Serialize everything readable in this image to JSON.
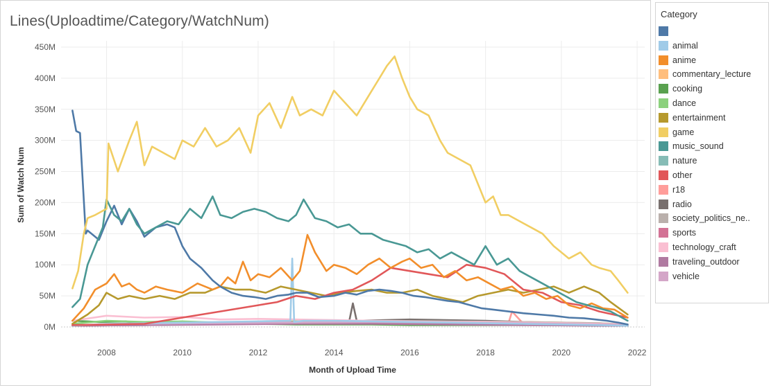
{
  "chart_data": {
    "type": "line",
    "title": "Lines(Uploadtime/Category/WatchNum)",
    "xlabel": "Month of Upload Time",
    "ylabel": "Sum of Watch Num",
    "xlim": [
      2006.8,
      2022.2
    ],
    "ylim": [
      0,
      460
    ],
    "x_ticks": [
      "2008",
      "2010",
      "2012",
      "2014",
      "2016",
      "2018",
      "2020",
      "2022"
    ],
    "y_ticks": [
      "0M",
      "50M",
      "100M",
      "150M",
      "200M",
      "250M",
      "300M",
      "350M",
      "400M",
      "450M"
    ],
    "legend_title": "Category",
    "legend_position": "right",
    "series": [
      {
        "name": "",
        "color": "#4e79a7",
        "x": [
          2007.1,
          2007.2,
          2007.3,
          2007.45,
          2007.5,
          2007.6,
          2007.8,
          2008.0,
          2008.2,
          2008.4,
          2008.6,
          2008.8,
          2009.0,
          2009.3,
          2009.6,
          2009.8,
          2010.0,
          2010.2,
          2010.5,
          2010.8,
          2011.0,
          2011.3,
          2011.6,
          2011.9,
          2012.2,
          2012.5,
          2012.8,
          2013.0,
          2013.3,
          2013.6,
          2014.0,
          2014.3,
          2014.6,
          2014.9,
          2015.2,
          2015.5,
          2015.8,
          2016.1,
          2016.4,
          2016.7,
          2017.0,
          2017.3,
          2017.6,
          2017.9,
          2018.2,
          2018.6,
          2019.0,
          2019.4,
          2019.8,
          2020.2,
          2020.6,
          2020.9,
          2021.2,
          2021.5,
          2021.75
        ],
        "y": [
          348,
          315,
          312,
          150,
          155,
          150,
          140,
          170,
          195,
          165,
          190,
          170,
          145,
          160,
          165,
          160,
          130,
          110,
          95,
          75,
          65,
          55,
          50,
          48,
          45,
          50,
          52,
          55,
          55,
          48,
          50,
          55,
          52,
          58,
          60,
          58,
          55,
          50,
          48,
          45,
          42,
          40,
          35,
          30,
          28,
          25,
          22,
          20,
          18,
          15,
          14,
          12,
          10,
          7,
          4
        ]
      },
      {
        "name": "animal",
        "color": "#a0cbe8",
        "x": [
          2007.1,
          2008,
          2009,
          2010,
          2011,
          2012,
          2012.85,
          2012.9,
          2012.95,
          2013.2,
          2014,
          2015,
          2016,
          2017,
          2018,
          2019,
          2020,
          2021,
          2021.75
        ],
        "y": [
          2,
          5,
          6,
          7,
          8,
          9,
          10,
          110,
          8,
          10,
          10,
          9,
          8,
          7,
          6,
          5,
          4,
          3,
          2
        ]
      },
      {
        "name": "anime",
        "color": "#f28e2b",
        "x": [
          2007.1,
          2007.4,
          2007.7,
          2008.0,
          2008.2,
          2008.4,
          2008.6,
          2008.8,
          2009.0,
          2009.3,
          2009.6,
          2010.0,
          2010.4,
          2010.8,
          2011.0,
          2011.2,
          2011.4,
          2011.6,
          2011.8,
          2012.0,
          2012.3,
          2012.6,
          2012.9,
          2013.1,
          2013.3,
          2013.5,
          2013.8,
          2014.0,
          2014.3,
          2014.6,
          2014.9,
          2015.2,
          2015.5,
          2015.8,
          2016.0,
          2016.3,
          2016.6,
          2016.9,
          2017.2,
          2017.5,
          2017.8,
          2018.1,
          2018.4,
          2018.7,
          2019.0,
          2019.3,
          2019.6,
          2019.9,
          2020.2,
          2020.5,
          2020.8,
          2021.1,
          2021.4,
          2021.75
        ],
        "y": [
          10,
          30,
          60,
          70,
          85,
          65,
          70,
          60,
          55,
          65,
          60,
          55,
          70,
          60,
          65,
          80,
          70,
          105,
          75,
          85,
          80,
          95,
          75,
          90,
          148,
          120,
          90,
          100,
          95,
          85,
          100,
          110,
          95,
          105,
          110,
          95,
          100,
          80,
          90,
          75,
          80,
          70,
          60,
          65,
          50,
          55,
          45,
          50,
          35,
          30,
          38,
          30,
          28,
          15
        ]
      },
      {
        "name": "commentary_lecture",
        "color": "#ffbe7d",
        "x": [
          2007.1,
          2009,
          2011,
          2013,
          2015,
          2017,
          2019,
          2021,
          2021.75
        ],
        "y": [
          3,
          5,
          7,
          8,
          10,
          9,
          8,
          6,
          4
        ]
      },
      {
        "name": "cooking",
        "color": "#59a14f",
        "x": [
          2007.1,
          2007.8,
          2008.5,
          2009,
          2010,
          2011,
          2012,
          2013,
          2014,
          2015,
          2016,
          2017,
          2018,
          2019,
          2020,
          2021,
          2021.75
        ],
        "y": [
          10,
          8,
          9,
          5,
          6,
          5,
          5,
          4,
          4,
          4,
          3,
          3,
          3,
          3,
          3,
          2,
          2
        ]
      },
      {
        "name": "dance",
        "color": "#8cd17d",
        "x": [
          2007.1,
          2008,
          2009,
          2010,
          2011,
          2012,
          2013,
          2014,
          2015,
          2016,
          2017,
          2018,
          2019,
          2020,
          2021,
          2021.75
        ],
        "y": [
          5,
          10,
          8,
          9,
          7,
          8,
          9,
          8,
          10,
          8,
          7,
          6,
          5,
          4,
          3,
          2
        ]
      },
      {
        "name": "entertainment",
        "color": "#b6992d",
        "x": [
          2007.1,
          2007.5,
          2007.8,
          2008.0,
          2008.3,
          2008.6,
          2009.0,
          2009.4,
          2009.8,
          2010.2,
          2010.6,
          2011.0,
          2011.4,
          2011.8,
          2012.2,
          2012.6,
          2013.0,
          2013.4,
          2013.8,
          2014.2,
          2014.6,
          2015.0,
          2015.4,
          2015.8,
          2016.2,
          2016.6,
          2017.0,
          2017.4,
          2017.8,
          2018.2,
          2018.6,
          2019.0,
          2019.4,
          2019.8,
          2020.2,
          2020.6,
          2021.0,
          2021.3,
          2021.75
        ],
        "y": [
          5,
          20,
          35,
          55,
          45,
          50,
          45,
          50,
          45,
          55,
          55,
          65,
          60,
          60,
          55,
          65,
          60,
          55,
          50,
          55,
          58,
          60,
          55,
          55,
          60,
          50,
          45,
          40,
          50,
          55,
          60,
          55,
          60,
          65,
          55,
          65,
          55,
          40,
          20
        ]
      },
      {
        "name": "game",
        "color": "#f1ce63",
        "x": [
          2007.1,
          2007.25,
          2007.4,
          2007.5,
          2007.7,
          2008.0,
          2008.05,
          2008.3,
          2008.6,
          2008.8,
          2009.0,
          2009.2,
          2009.5,
          2009.8,
          2010.0,
          2010.3,
          2010.6,
          2010.9,
          2011.2,
          2011.5,
          2011.8,
          2012.0,
          2012.3,
          2012.6,
          2012.9,
          2013.1,
          2013.4,
          2013.7,
          2014.0,
          2014.3,
          2014.6,
          2014.9,
          2015.2,
          2015.4,
          2015.6,
          2015.8,
          2016.0,
          2016.2,
          2016.5,
          2016.8,
          2017.0,
          2017.3,
          2017.6,
          2017.8,
          2018.0,
          2018.2,
          2018.4,
          2018.6,
          2018.9,
          2019.2,
          2019.5,
          2019.8,
          2020.0,
          2020.2,
          2020.5,
          2020.8,
          2021.0,
          2021.3,
          2021.5,
          2021.75
        ],
        "y": [
          62,
          90,
          150,
          175,
          180,
          190,
          295,
          250,
          300,
          330,
          260,
          290,
          280,
          270,
          300,
          290,
          320,
          290,
          300,
          320,
          280,
          340,
          360,
          320,
          370,
          340,
          350,
          340,
          380,
          360,
          340,
          370,
          400,
          420,
          435,
          400,
          370,
          350,
          340,
          300,
          280,
          270,
          260,
          230,
          200,
          210,
          180,
          180,
          170,
          160,
          150,
          130,
          120,
          110,
          120,
          100,
          95,
          90,
          75,
          55
        ]
      },
      {
        "name": "music_sound",
        "color": "#499894",
        "x": [
          2007.1,
          2007.3,
          2007.5,
          2007.7,
          2007.9,
          2008.0,
          2008.2,
          2008.4,
          2008.6,
          2008.8,
          2009.0,
          2009.3,
          2009.6,
          2009.9,
          2010.2,
          2010.5,
          2010.8,
          2011.0,
          2011.3,
          2011.6,
          2011.9,
          2012.2,
          2012.5,
          2012.8,
          2013.0,
          2013.2,
          2013.5,
          2013.8,
          2014.1,
          2014.4,
          2014.7,
          2015.0,
          2015.3,
          2015.6,
          2015.9,
          2016.2,
          2016.5,
          2016.8,
          2017.1,
          2017.4,
          2017.7,
          2018.0,
          2018.3,
          2018.6,
          2018.9,
          2019.2,
          2019.5,
          2019.8,
          2020.1,
          2020.4,
          2020.7,
          2021.0,
          2021.3,
          2021.75
        ],
        "y": [
          32,
          45,
          100,
          130,
          160,
          205,
          180,
          170,
          190,
          165,
          150,
          160,
          170,
          165,
          190,
          175,
          210,
          180,
          175,
          185,
          190,
          185,
          175,
          170,
          180,
          205,
          175,
          170,
          160,
          165,
          150,
          150,
          140,
          135,
          130,
          120,
          125,
          110,
          120,
          110,
          100,
          130,
          100,
          110,
          90,
          80,
          70,
          60,
          50,
          40,
          35,
          30,
          25,
          10
        ]
      },
      {
        "name": "nature",
        "color": "#86bcb6",
        "x": [
          2007.1,
          2009,
          2011,
          2013,
          2015,
          2017,
          2019,
          2021,
          2021.75
        ],
        "y": [
          2,
          4,
          5,
          6,
          7,
          6,
          5,
          4,
          3
        ]
      },
      {
        "name": "other",
        "color": "#e15759",
        "x": [
          2007.1,
          2009,
          2010,
          2011,
          2012,
          2012.5,
          2013,
          2013.5,
          2014,
          2014.5,
          2015,
          2015.5,
          2016,
          2016.5,
          2017,
          2017.5,
          2018,
          2018.5,
          2019,
          2019.5,
          2020,
          2020.5,
          2021,
          2021.75
        ],
        "y": [
          3,
          5,
          15,
          25,
          35,
          40,
          50,
          45,
          55,
          60,
          75,
          95,
          90,
          85,
          80,
          100,
          95,
          85,
          60,
          55,
          40,
          35,
          25,
          15
        ]
      },
      {
        "name": "r18",
        "color": "#ff9d9a",
        "x": [
          2007.1,
          2009,
          2011,
          2013,
          2015,
          2017,
          2018.6,
          2018.7,
          2019,
          2021,
          2021.75
        ],
        "y": [
          2,
          4,
          5,
          6,
          6,
          5,
          5,
          25,
          5,
          3,
          2
        ]
      },
      {
        "name": "radio",
        "color": "#79706e",
        "x": [
          2007.1,
          2009,
          2011,
          2013,
          2014.4,
          2014.5,
          2014.6,
          2016,
          2018,
          2020,
          2021.75
        ],
        "y": [
          2,
          3,
          5,
          8,
          8,
          38,
          10,
          12,
          10,
          6,
          4
        ]
      },
      {
        "name": "society_politics_ne..",
        "color": "#bab0ac",
        "x": [
          2007.1,
          2009,
          2011,
          2013,
          2015,
          2017,
          2019,
          2021,
          2021.75
        ],
        "y": [
          2,
          3,
          5,
          8,
          10,
          9,
          8,
          6,
          4
        ]
      },
      {
        "name": "sports",
        "color": "#d37295",
        "x": [
          2007.1,
          2009,
          2011,
          2013,
          2015,
          2017,
          2019,
          2021,
          2021.75
        ],
        "y": [
          2,
          4,
          5,
          6,
          6,
          5,
          4,
          3,
          2
        ]
      },
      {
        "name": "technology_craft",
        "color": "#fabfd2",
        "x": [
          2007.1,
          2008,
          2009,
          2010,
          2011,
          2012,
          2013,
          2014,
          2015,
          2016,
          2017,
          2018,
          2019,
          2020,
          2021,
          2021.75
        ],
        "y": [
          10,
          18,
          15,
          16,
          12,
          13,
          12,
          11,
          10,
          9,
          8,
          8,
          7,
          6,
          5,
          4
        ]
      },
      {
        "name": "traveling_outdoor",
        "color": "#b07aa1",
        "x": [
          2007.1,
          2009,
          2011,
          2013,
          2015,
          2017,
          2019,
          2021,
          2021.75
        ],
        "y": [
          2,
          3,
          4,
          5,
          5,
          4,
          3,
          2,
          2
        ]
      },
      {
        "name": "vehicle",
        "color": "#d4a6c8",
        "x": [
          2007.1,
          2009,
          2011,
          2013,
          2015,
          2017,
          2019,
          2021,
          2021.75
        ],
        "y": [
          3,
          5,
          6,
          7,
          8,
          7,
          6,
          4,
          3
        ]
      }
    ]
  }
}
